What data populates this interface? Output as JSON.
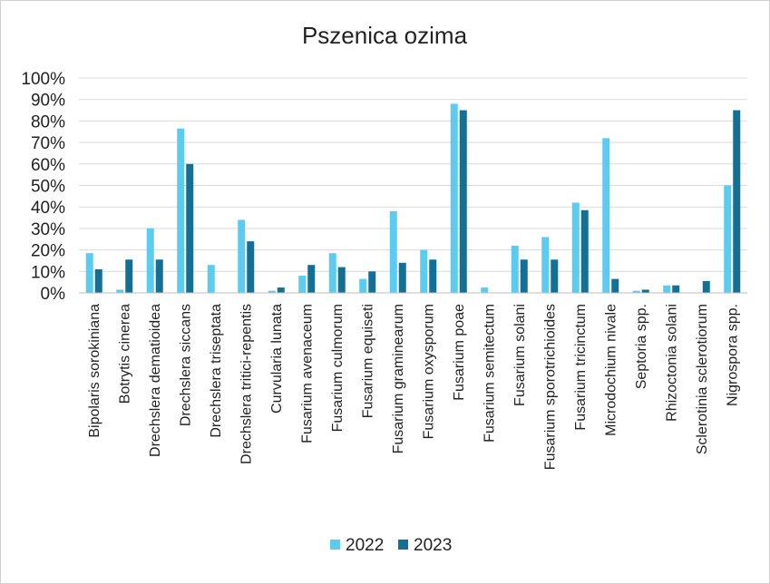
{
  "chart_data": {
    "type": "bar",
    "title": "Pszenica ozima",
    "xlabel": "",
    "ylabel": "",
    "ylim": [
      0,
      100
    ],
    "y_ticks": [
      "0%",
      "10%",
      "20%",
      "30%",
      "40%",
      "50%",
      "60%",
      "70%",
      "80%",
      "90%",
      "100%"
    ],
    "grid": true,
    "legend_position": "bottom",
    "categories": [
      "Bipolaris sorokiniana",
      "Botrytis cinerea",
      "Drechslera dematioidea",
      "Drechslera siccans",
      "Drechslera triseptata",
      "Drechslera tritici-repentis",
      "Curvularia lunata",
      "Fusarium avenaceum",
      "Fusarium culmorum",
      "Fusarium equiseti",
      "Fusarium graminearum",
      "Fusarium oxysporum",
      "Fusarium poae",
      "Fusarium semitectum",
      "Fusarium solani",
      "Fusarium sporotrichioides",
      "Fusarium tricinctum",
      "Microdochium nivale",
      "Septoria spp.",
      "Rhizoctonia solani",
      "Sclerotinia sclerotiorum",
      "Nigrospora spp."
    ],
    "series": [
      {
        "name": "2022",
        "color": "#5ccbf0",
        "values": [
          18.5,
          1.5,
          30,
          76.5,
          13,
          34,
          1,
          8,
          18.5,
          6.5,
          38,
          20,
          88,
          2.5,
          22,
          26,
          42,
          72,
          1,
          3.5,
          0,
          50
        ]
      },
      {
        "name": "2023",
        "color": "#136f94",
        "values": [
          11,
          15.5,
          15.5,
          60,
          0,
          24,
          2.5,
          13,
          12,
          10,
          14,
          15.5,
          85,
          0,
          15.5,
          15.5,
          38.5,
          6.5,
          1.5,
          3.5,
          5.5,
          85
        ]
      }
    ]
  }
}
